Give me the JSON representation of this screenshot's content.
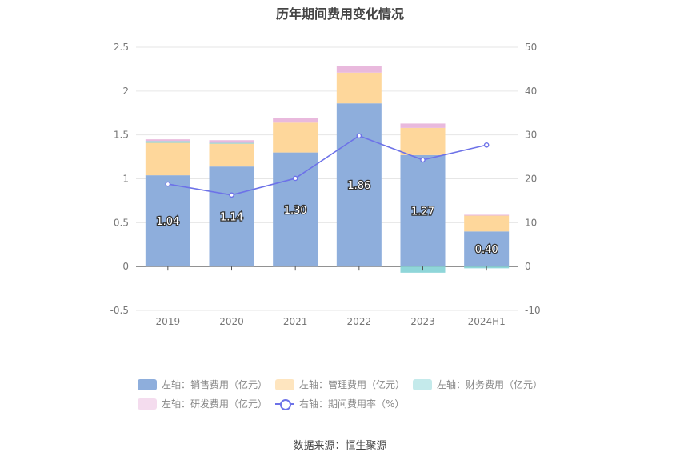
{
  "chart_data": {
    "type": "bar",
    "title": "历年期间费用变化情况",
    "categories": [
      "2019",
      "2020",
      "2021",
      "2022",
      "2023",
      "2024H1"
    ],
    "y_left_ticks": [
      "2.5",
      "2",
      "1.5",
      "1",
      "0.5",
      "0",
      "-0.5"
    ],
    "y_right_ticks": [
      "50",
      "40",
      "30",
      "20",
      "10",
      "0",
      "-10"
    ],
    "ylim_left": [
      -0.5,
      2.5
    ],
    "ylim_right": [
      -10,
      50
    ],
    "series": [
      {
        "name": "左轴：销售费用（亿元）",
        "axis": "left",
        "kind": "bar",
        "color": "#8eaedc",
        "values": [
          1.04,
          1.14,
          1.3,
          1.86,
          1.27,
          0.4
        ],
        "labels": [
          "1.04",
          "1.14",
          "1.30",
          "1.86",
          "1.27",
          "0.40"
        ]
      },
      {
        "name": "左轴：管理费用（亿元）",
        "axis": "left",
        "kind": "bar",
        "color": "#fed79b",
        "values": [
          0.37,
          0.26,
          0.34,
          0.35,
          0.31,
          0.18
        ]
      },
      {
        "name": "左轴：财务费用（亿元）",
        "axis": "left",
        "kind": "bar",
        "color": "#8fd6d9",
        "values": [
          0.02,
          0.01,
          0.0,
          0.0,
          -0.07,
          -0.02
        ]
      },
      {
        "name": "左轴：研发费用（亿元）",
        "axis": "left",
        "kind": "bar",
        "color": "#e9b9dd",
        "values": [
          0.02,
          0.03,
          0.05,
          0.08,
          0.05,
          0.01
        ]
      },
      {
        "name": "右轴：期间费用率（%）",
        "axis": "right",
        "kind": "line",
        "color": "#6d72e8",
        "values": [
          18.8,
          16.3,
          20.1,
          29.8,
          24.3,
          27.7
        ]
      }
    ],
    "legend_position": "bottom",
    "grid": true
  },
  "source": "数据来源：恒生聚源"
}
